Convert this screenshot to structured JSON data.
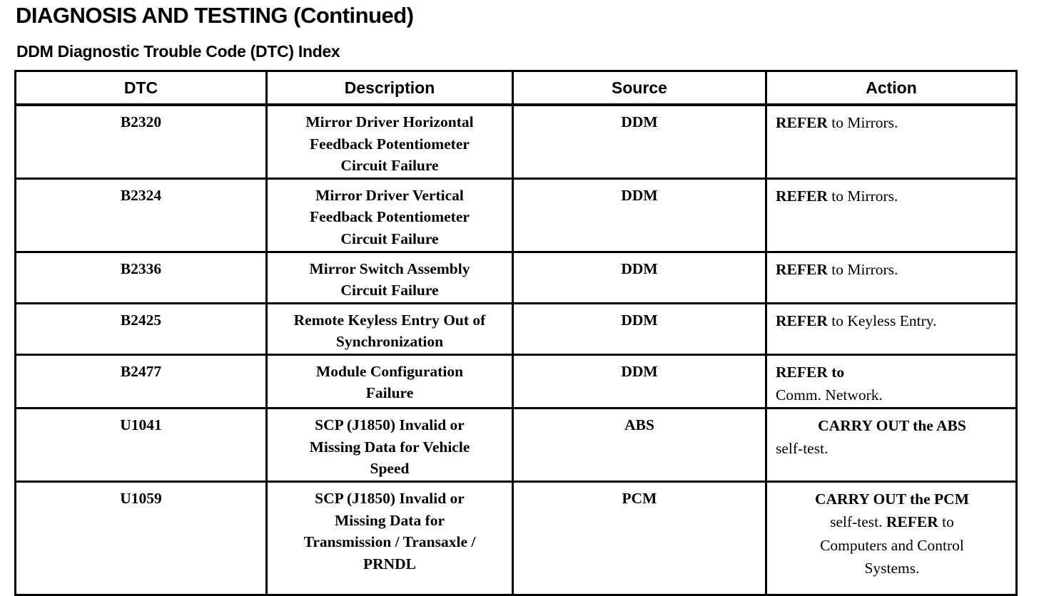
{
  "page": {
    "title": "DIAGNOSIS AND TESTING (Continued)",
    "subtitle": "DDM Diagnostic Trouble Code (DTC) Index"
  },
  "colors": {
    "text": "#000000",
    "background": "#ffffff",
    "border": "#000000"
  },
  "table": {
    "headers": [
      "DTC",
      "Description",
      "Source",
      "Action"
    ],
    "rows": [
      {
        "dtc": "B2320",
        "description": "Mirror Driver Horizontal\nFeedback Potentiometer\nCircuit Failure",
        "source": "DDM",
        "action": [
          {
            "align": "left",
            "segments": [
              {
                "t": "REFER",
                "b": true
              },
              {
                "t": " to Mirrors.",
                "b": false
              }
            ]
          }
        ]
      },
      {
        "dtc": "B2324",
        "description": "Mirror Driver Vertical\nFeedback Potentiometer\nCircuit Failure",
        "source": "DDM",
        "action": [
          {
            "align": "left",
            "segments": [
              {
                "t": "REFER",
                "b": true
              },
              {
                "t": " to Mirrors.",
                "b": false
              }
            ]
          }
        ]
      },
      {
        "dtc": "B2336",
        "description": "Mirror Switch Assembly\nCircuit Failure",
        "source": "DDM",
        "action": [
          {
            "align": "left",
            "segments": [
              {
                "t": "REFER",
                "b": true
              },
              {
                "t": " to Mirrors.",
                "b": false
              }
            ]
          }
        ]
      },
      {
        "dtc": "B2425",
        "description": "Remote Keyless Entry Out of\nSynchronization",
        "source": "DDM",
        "action": [
          {
            "align": "left",
            "segments": [
              {
                "t": "REFER",
                "b": true
              },
              {
                "t": " to Keyless Entry.",
                "b": false
              }
            ]
          }
        ]
      },
      {
        "dtc": "B2477",
        "description": "Module Configuration\nFailure",
        "source": "DDM",
        "action": [
          {
            "align": "left",
            "segments": [
              {
                "t": "REFER to",
                "b": true
              }
            ]
          },
          {
            "align": "left",
            "segments": [
              {
                "t": "Comm. Network.",
                "b": false
              }
            ]
          }
        ]
      },
      {
        "dtc": "U1041",
        "description": "SCP (J1850) Invalid or\nMissing Data for Vehicle\nSpeed",
        "source": "ABS",
        "action": [
          {
            "align": "center",
            "segments": [
              {
                "t": "CARRY OUT the ABS",
                "b": true
              }
            ]
          },
          {
            "align": "left",
            "segments": [
              {
                "t": "self-test.",
                "b": false
              }
            ]
          }
        ]
      },
      {
        "dtc": "U1059",
        "description": "SCP (J1850) Invalid or\nMissing Data for\nTransmission / Transaxle /\nPRNDL",
        "source": "PCM",
        "action": [
          {
            "align": "center",
            "segments": [
              {
                "t": "CARRY OUT the PCM",
                "b": true
              }
            ]
          },
          {
            "align": "center",
            "segments": [
              {
                "t": "self-test. ",
                "b": false
              },
              {
                "t": "REFER",
                "b": true
              },
              {
                "t": " to",
                "b": false
              }
            ]
          },
          {
            "align": "center",
            "segments": [
              {
                "t": "Computers and Control",
                "b": false
              }
            ]
          },
          {
            "align": "center",
            "segments": [
              {
                "t": "Systems.",
                "b": false
              }
            ]
          }
        ]
      }
    ]
  }
}
